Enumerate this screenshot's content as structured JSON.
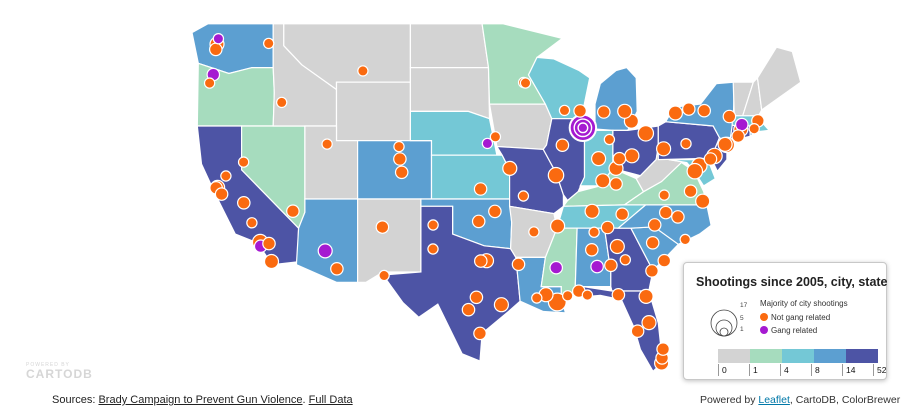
{
  "colors": {
    "bin0": "#d3d3d3",
    "bin1": "#a6dcbe",
    "bin2": "#74c8d6",
    "bin3": "#5c9fd1",
    "bin4": "#4d54a5",
    "not_gang": "#fa6a10",
    "gang": "#a51ad1",
    "border": "#ffffff"
  },
  "legend": {
    "title": "Shootings since 2005, city, state",
    "subtitle": "Majority of city shootings",
    "items": [
      {
        "label": "Not gang related",
        "color": "#fa6a10"
      },
      {
        "label": "Gang related",
        "color": "#a51ad1"
      }
    ],
    "size_labels": [
      "17",
      "5",
      "1"
    ],
    "ramp_labels": [
      "0",
      "1",
      "4",
      "8",
      "14",
      "52"
    ]
  },
  "footer": {
    "sources_prefix": "Sources: ",
    "brady_link": "Brady Campaign to Prevent Gun Violence",
    "separator": ". ",
    "full_data_link": "Full Data"
  },
  "attribution": {
    "prefix": "Powered by ",
    "leaflet_link": "Leaflet",
    "rest": ", CartoDB, ColorBrewer"
  },
  "watermark": {
    "small": "POWERED BY",
    "big": "CARTODB"
  },
  "states": [
    {
      "name": "Washington",
      "bin": 3
    },
    {
      "name": "Oregon",
      "bin": 1
    },
    {
      "name": "California",
      "bin": 4
    },
    {
      "name": "Nevada",
      "bin": 1
    },
    {
      "name": "Idaho",
      "bin": 0
    },
    {
      "name": "Montana",
      "bin": 0
    },
    {
      "name": "Wyoming",
      "bin": 0
    },
    {
      "name": "Utah",
      "bin": 0
    },
    {
      "name": "Arizona",
      "bin": 3
    },
    {
      "name": "Colorado",
      "bin": 3
    },
    {
      "name": "New Mexico",
      "bin": 0
    },
    {
      "name": "North Dakota",
      "bin": 0
    },
    {
      "name": "South Dakota",
      "bin": 0
    },
    {
      "name": "Nebraska",
      "bin": 2
    },
    {
      "name": "Kansas",
      "bin": 2
    },
    {
      "name": "Oklahoma",
      "bin": 3
    },
    {
      "name": "Texas",
      "bin": 4
    },
    {
      "name": "Minnesota",
      "bin": 1
    },
    {
      "name": "Iowa",
      "bin": 0
    },
    {
      "name": "Missouri",
      "bin": 4
    },
    {
      "name": "Arkansas",
      "bin": 0
    },
    {
      "name": "Louisiana",
      "bin": 3
    },
    {
      "name": "Wisconsin",
      "bin": 2
    },
    {
      "name": "Illinois",
      "bin": 4
    },
    {
      "name": "Michigan",
      "bin": 3
    },
    {
      "name": "Indiana",
      "bin": 2
    },
    {
      "name": "Ohio",
      "bin": 4
    },
    {
      "name": "Kentucky",
      "bin": 1
    },
    {
      "name": "Tennessee",
      "bin": 2
    },
    {
      "name": "Mississippi",
      "bin": 1
    },
    {
      "name": "Alabama",
      "bin": 3
    },
    {
      "name": "Georgia",
      "bin": 4
    },
    {
      "name": "Florida",
      "bin": 4
    },
    {
      "name": "South Carolina",
      "bin": 3
    },
    {
      "name": "North Carolina",
      "bin": 3
    },
    {
      "name": "Virginia",
      "bin": 1
    },
    {
      "name": "West Virginia",
      "bin": 0
    },
    {
      "name": "Pennsylvania",
      "bin": 4
    },
    {
      "name": "New York",
      "bin": 3
    },
    {
      "name": "Maryland",
      "bin": 2
    },
    {
      "name": "New Jersey",
      "bin": 4
    },
    {
      "name": "Vermont",
      "bin": 0
    },
    {
      "name": "New Hampshire",
      "bin": 0
    },
    {
      "name": "Maine",
      "bin": 0
    },
    {
      "name": "Massachusetts",
      "bin": 2
    },
    {
      "name": "Connecticut",
      "bin": 4
    },
    {
      "name": "Rhode Island",
      "bin": 3
    }
  ],
  "markers": [
    {
      "lon": -122.33,
      "lat": 47.61,
      "n": 3,
      "gang": false
    },
    {
      "lon": -122.44,
      "lat": 47.25,
      "n": 2,
      "gang": false
    },
    {
      "lon": -122.2,
      "lat": 47.98,
      "n": 1,
      "gang": true
    },
    {
      "lon": -122.68,
      "lat": 45.52,
      "n": 2,
      "gang": true
    },
    {
      "lon": -117.43,
      "lat": 47.66,
      "n": 1,
      "gang": false
    },
    {
      "lon": -123.03,
      "lat": 44.94,
      "n": 1,
      "gang": false
    },
    {
      "lon": -122.42,
      "lat": 37.77,
      "n": 2,
      "gang": false
    },
    {
      "lon": -122.27,
      "lat": 37.8,
      "n": 3,
      "gang": false
    },
    {
      "lon": -121.89,
      "lat": 37.34,
      "n": 2,
      "gang": false
    },
    {
      "lon": -121.49,
      "lat": 38.58,
      "n": 1,
      "gang": false
    },
    {
      "lon": -119.79,
      "lat": 36.74,
      "n": 2,
      "gang": false
    },
    {
      "lon": -119.02,
      "lat": 35.37,
      "n": 1,
      "gang": false
    },
    {
      "lon": -118.24,
      "lat": 34.05,
      "n": 4,
      "gang": false
    },
    {
      "lon": -118.19,
      "lat": 33.77,
      "n": 2,
      "gang": true
    },
    {
      "lon": -117.4,
      "lat": 33.95,
      "n": 2,
      "gang": false
    },
    {
      "lon": -117.16,
      "lat": 32.72,
      "n": 3,
      "gang": false
    },
    {
      "lon": -115.14,
      "lat": 36.17,
      "n": 2,
      "gang": false
    },
    {
      "lon": -119.81,
      "lat": 39.53,
      "n": 1,
      "gang": false
    },
    {
      "lon": -112.07,
      "lat": 33.45,
      "n": 3,
      "gang": true
    },
    {
      "lon": -110.97,
      "lat": 32.22,
      "n": 2,
      "gang": false
    },
    {
      "lon": -111.89,
      "lat": 40.76,
      "n": 1,
      "gang": false
    },
    {
      "lon": -116.2,
      "lat": 43.62,
      "n": 1,
      "gang": false
    },
    {
      "lon": -104.99,
      "lat": 39.74,
      "n": 2,
      "gang": false
    },
    {
      "lon": -104.82,
      "lat": 38.83,
      "n": 2,
      "gang": false
    },
    {
      "lon": -105.08,
      "lat": 40.59,
      "n": 1,
      "gang": false
    },
    {
      "lon": -106.65,
      "lat": 35.08,
      "n": 2,
      "gang": false
    },
    {
      "lon": -108.5,
      "lat": 45.78,
      "n": 1,
      "gang": false
    },
    {
      "lon": -96.79,
      "lat": 32.78,
      "n": 3,
      "gang": false
    },
    {
      "lon": -97.33,
      "lat": 32.75,
      "n": 2,
      "gang": false
    },
    {
      "lon": -95.37,
      "lat": 29.76,
      "n": 3,
      "gang": false
    },
    {
      "lon": -98.49,
      "lat": 29.42,
      "n": 2,
      "gang": false
    },
    {
      "lon": -97.74,
      "lat": 30.27,
      "n": 2,
      "gang": false
    },
    {
      "lon": -97.4,
      "lat": 27.8,
      "n": 2,
      "gang": false
    },
    {
      "lon": -101.85,
      "lat": 35.22,
      "n": 1,
      "gang": false
    },
    {
      "lon": -101.86,
      "lat": 33.58,
      "n": 1,
      "gang": false
    },
    {
      "lon": -106.49,
      "lat": 31.76,
      "n": 1,
      "gang": false
    },
    {
      "lon": -97.52,
      "lat": 35.47,
      "n": 2,
      "gang": false
    },
    {
      "lon": -95.99,
      "lat": 36.15,
      "n": 2,
      "gang": false
    },
    {
      "lon": -94.58,
      "lat": 39.1,
      "n": 3,
      "gang": false
    },
    {
      "lon": -90.2,
      "lat": 38.63,
      "n": 4,
      "gang": false
    },
    {
      "lon": -93.29,
      "lat": 37.21,
      "n": 1,
      "gang": false
    },
    {
      "lon": -97.34,
      "lat": 37.69,
      "n": 2,
      "gang": false
    },
    {
      "lon": -95.94,
      "lat": 41.26,
      "n": 1,
      "gang": false
    },
    {
      "lon": -96.7,
      "lat": 40.81,
      "n": 1,
      "gang": true
    },
    {
      "lon": -93.27,
      "lat": 44.98,
      "n": 1,
      "gang": false
    },
    {
      "lon": -93.09,
      "lat": 44.95,
      "n": 1,
      "gang": false
    },
    {
      "lon": -87.91,
      "lat": 43.04,
      "n": 2,
      "gang": false
    },
    {
      "lon": -87.65,
      "lat": 41.88,
      "n": 17,
      "gang": true
    },
    {
      "lon": -89.39,
      "lat": 43.07,
      "n": 1,
      "gang": false
    },
    {
      "lon": -89.59,
      "lat": 40.69,
      "n": 2,
      "gang": false
    },
    {
      "lon": -83.05,
      "lat": 42.33,
      "n": 3,
      "gang": false
    },
    {
      "lon": -85.67,
      "lat": 42.96,
      "n": 2,
      "gang": false
    },
    {
      "lon": -83.69,
      "lat": 43.01,
      "n": 3,
      "gang": false
    },
    {
      "lon": -86.16,
      "lat": 39.77,
      "n": 3,
      "gang": false
    },
    {
      "lon": -85.14,
      "lat": 41.08,
      "n": 1,
      "gang": false
    },
    {
      "lon": -81.69,
      "lat": 41.5,
      "n": 4,
      "gang": false
    },
    {
      "lon": -83.0,
      "lat": 39.96,
      "n": 3,
      "gang": false
    },
    {
      "lon": -84.51,
      "lat": 39.1,
      "n": 3,
      "gang": false
    },
    {
      "lon": -84.19,
      "lat": 39.76,
      "n": 2,
      "gang": false
    },
    {
      "lon": -80.0,
      "lat": 40.44,
      "n": 3,
      "gang": false
    },
    {
      "lon": -75.17,
      "lat": 39.95,
      "n": 4,
      "gang": false
    },
    {
      "lon": -77.88,
      "lat": 40.79,
      "n": 1,
      "gang": false
    },
    {
      "lon": -74.01,
      "lat": 40.71,
      "n": 4,
      "gang": false
    },
    {
      "lon": -74.17,
      "lat": 40.74,
      "n": 3,
      "gang": false
    },
    {
      "lon": -73.76,
      "lat": 42.65,
      "n": 2,
      "gang": false
    },
    {
      "lon": -76.15,
      "lat": 43.05,
      "n": 2,
      "gang": false
    },
    {
      "lon": -77.61,
      "lat": 43.16,
      "n": 2,
      "gang": false
    },
    {
      "lon": -78.88,
      "lat": 42.89,
      "n": 3,
      "gang": false
    },
    {
      "lon": -71.06,
      "lat": 42.36,
      "n": 2,
      "gang": false
    },
    {
      "lon": -72.59,
      "lat": 42.1,
      "n": 2,
      "gang": true
    },
    {
      "lon": -72.68,
      "lat": 41.76,
      "n": 3,
      "gang": false
    },
    {
      "lon": -72.93,
      "lat": 41.31,
      "n": 2,
      "gang": false
    },
    {
      "lon": -71.41,
      "lat": 41.82,
      "n": 1,
      "gang": false
    },
    {
      "lon": -76.61,
      "lat": 39.29,
      "n": 4,
      "gang": false
    },
    {
      "lon": -77.04,
      "lat": 38.91,
      "n": 4,
      "gang": false
    },
    {
      "lon": -75.55,
      "lat": 39.74,
      "n": 2,
      "gang": false
    },
    {
      "lon": -77.44,
      "lat": 37.54,
      "n": 2,
      "gang": false
    },
    {
      "lon": -76.29,
      "lat": 36.85,
      "n": 3,
      "gang": false
    },
    {
      "lon": -79.94,
      "lat": 37.27,
      "n": 1,
      "gang": false
    },
    {
      "lon": -80.84,
      "lat": 35.23,
      "n": 2,
      "gang": false
    },
    {
      "lon": -78.64,
      "lat": 35.78,
      "n": 2,
      "gang": false
    },
    {
      "lon": -79.79,
      "lat": 36.07,
      "n": 2,
      "gang": false
    },
    {
      "lon": -77.95,
      "lat": 34.23,
      "n": 1,
      "gang": false
    },
    {
      "lon": -79.93,
      "lat": 32.78,
      "n": 2,
      "gang": false
    },
    {
      "lon": -81.03,
      "lat": 34.0,
      "n": 2,
      "gang": false
    },
    {
      "lon": -84.39,
      "lat": 33.75,
      "n": 3,
      "gang": false
    },
    {
      "lon": -81.1,
      "lat": 32.08,
      "n": 2,
      "gang": false
    },
    {
      "lon": -83.63,
      "lat": 32.84,
      "n": 1,
      "gang": false
    },
    {
      "lon": -84.99,
      "lat": 32.46,
      "n": 2,
      "gang": false
    },
    {
      "lon": -86.8,
      "lat": 33.52,
      "n": 2,
      "gang": false
    },
    {
      "lon": -86.3,
      "lat": 32.37,
      "n": 2,
      "gang": true
    },
    {
      "lon": -88.04,
      "lat": 30.69,
      "n": 2,
      "gang": false
    },
    {
      "lon": -86.59,
      "lat": 34.73,
      "n": 1,
      "gang": false
    },
    {
      "lon": -86.78,
      "lat": 36.16,
      "n": 3,
      "gang": false
    },
    {
      "lon": -90.05,
      "lat": 35.15,
      "n": 3,
      "gang": false
    },
    {
      "lon": -85.31,
      "lat": 35.05,
      "n": 2,
      "gang": false
    },
    {
      "lon": -83.92,
      "lat": 35.96,
      "n": 2,
      "gang": false
    },
    {
      "lon": -85.76,
      "lat": 38.25,
      "n": 3,
      "gang": false
    },
    {
      "lon": -84.5,
      "lat": 38.04,
      "n": 2,
      "gang": false
    },
    {
      "lon": -90.07,
      "lat": 29.95,
      "n": 6,
      "gang": false
    },
    {
      "lon": -91.15,
      "lat": 30.45,
      "n": 3,
      "gang": false
    },
    {
      "lon": -93.75,
      "lat": 32.53,
      "n": 2,
      "gang": false
    },
    {
      "lon": -92.02,
      "lat": 30.22,
      "n": 1,
      "gang": false
    },
    {
      "lon": -90.18,
      "lat": 32.3,
      "n": 2,
      "gang": true
    },
    {
      "lon": -89.09,
      "lat": 30.37,
      "n": 1,
      "gang": false
    },
    {
      "lon": -92.29,
      "lat": 34.75,
      "n": 1,
      "gang": false
    },
    {
      "lon": -81.66,
      "lat": 30.33,
      "n": 3,
      "gang": false
    },
    {
      "lon": -82.46,
      "lat": 27.95,
      "n": 2,
      "gang": false
    },
    {
      "lon": -81.38,
      "lat": 28.54,
      "n": 3,
      "gang": false
    },
    {
      "lon": -80.19,
      "lat": 25.76,
      "n": 3,
      "gang": false
    },
    {
      "lon": -80.14,
      "lat": 26.12,
      "n": 2,
      "gang": false
    },
    {
      "lon": -84.28,
      "lat": 30.44,
      "n": 2,
      "gang": false
    },
    {
      "lon": -87.22,
      "lat": 30.42,
      "n": 1,
      "gang": false
    },
    {
      "lon": -80.05,
      "lat": 26.72,
      "n": 2,
      "gang": false
    }
  ]
}
